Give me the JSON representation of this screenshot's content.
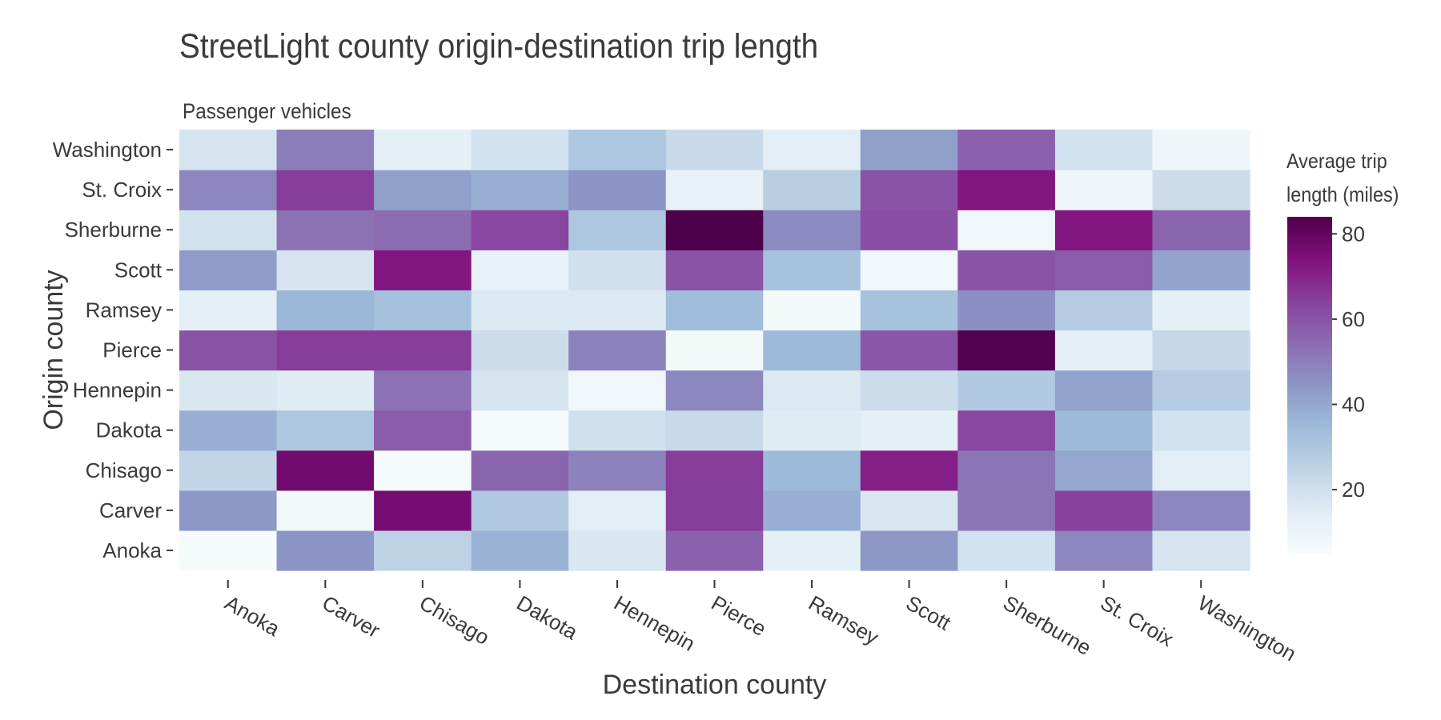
{
  "chart_data": {
    "type": "heatmap",
    "title": "StreetLight county origin-destination trip length",
    "subtitle": "Passenger vehicles",
    "xlabel": "Destination county",
    "ylabel": "Origin county",
    "x_categories": [
      "Anoka",
      "Carver",
      "Chisago",
      "Dakota",
      "Hennepin",
      "Pierce",
      "Ramsey",
      "Scott",
      "Sherburne",
      "St. Croix",
      "Washington"
    ],
    "y_categories": [
      "Anoka",
      "Carver",
      "Chisago",
      "Dakota",
      "Hennepin",
      "Pierce",
      "Ramsey",
      "Scott",
      "Sherburne",
      "St. Croix",
      "Washington"
    ],
    "values": [
      [
        6,
        45,
        25,
        37,
        17,
        57,
        13,
        44,
        19,
        48,
        18
      ],
      [
        44,
        7,
        76,
        29,
        14,
        65,
        38,
        17,
        52,
        64,
        48
      ],
      [
        24,
        77,
        6,
        56,
        49,
        65,
        35,
        71,
        52,
        40,
        14
      ],
      [
        38,
        30,
        58,
        6,
        20,
        22,
        15,
        13,
        63,
        35,
        19
      ],
      [
        17,
        15,
        53,
        18,
        8,
        48,
        16,
        21,
        29,
        41,
        28
      ],
      [
        60,
        65,
        65,
        21,
        49,
        7,
        35,
        59,
        83,
        13,
        23
      ],
      [
        13,
        36,
        33,
        16,
        16,
        34,
        7,
        32,
        46,
        28,
        13
      ],
      [
        43,
        18,
        73,
        12,
        20,
        60,
        32,
        8,
        60,
        58,
        41
      ],
      [
        19,
        53,
        54,
        63,
        30,
        84,
        47,
        61,
        8,
        73,
        56
      ],
      [
        48,
        65,
        42,
        38,
        45,
        12,
        27,
        60,
        73,
        9,
        21
      ],
      [
        18,
        50,
        13,
        19,
        30,
        22,
        14,
        42,
        57,
        19,
        9
      ]
    ],
    "colorscale": {
      "name": "BuPu",
      "min": 5,
      "max": 84,
      "low_color": "#f7fcfd",
      "high_color": "#4d004b"
    },
    "colorbar": {
      "title_line1": "Average trip",
      "title_line2": "length (miles)",
      "ticks": [
        20,
        40,
        60,
        80
      ]
    }
  }
}
